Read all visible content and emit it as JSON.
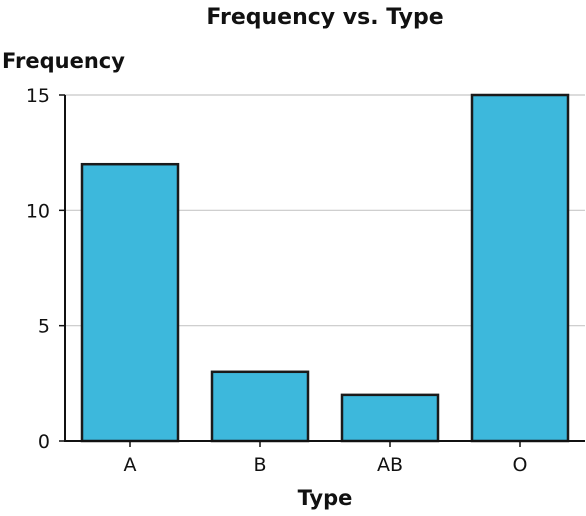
{
  "chart_data": {
    "type": "bar",
    "title": "Frequency vs. Type",
    "xlabel": "Type",
    "ylabel": "Frequency",
    "categories": [
      "A",
      "B",
      "AB",
      "O"
    ],
    "values": [
      12,
      3,
      2,
      15
    ],
    "ylim": [
      0,
      15
    ],
    "yticks": [
      "0",
      "5",
      "10",
      "15"
    ],
    "grid": true,
    "bar_color": "#3db8dc"
  }
}
